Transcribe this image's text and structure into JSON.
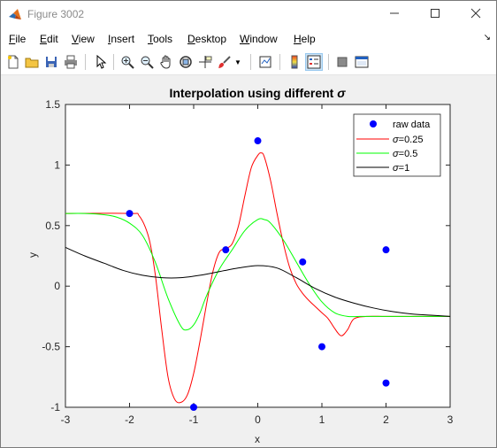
{
  "window": {
    "title": "Figure 3002",
    "minimize_icon": "minimize-icon",
    "maximize_icon": "maximize-icon",
    "close_icon": "close-icon"
  },
  "menu": [
    {
      "label": "File",
      "key": "F",
      "rest": "ile"
    },
    {
      "label": "Edit",
      "key": "E",
      "rest": "dit"
    },
    {
      "label": "View",
      "key": "V",
      "rest": "iew"
    },
    {
      "label": "Insert",
      "key": "I",
      "rest": "nsert"
    },
    {
      "label": "Tools",
      "key": "T",
      "rest": "ools"
    },
    {
      "label": "Desktop",
      "key": "D",
      "rest": "esktop"
    },
    {
      "label": "Window",
      "key": "W",
      "rest": "indow"
    },
    {
      "label": "Help",
      "key": "H",
      "rest": "elp"
    }
  ],
  "toolbar": {
    "icons": [
      "new-figure-icon",
      "open-file-icon",
      "save-icon",
      "print-icon",
      "pointer-icon",
      "zoom-in-icon",
      "zoom-out-icon",
      "pan-icon",
      "rotate-3d-icon",
      "data-cursor-icon",
      "brush-icon",
      "link-plot-icon",
      "colorbar-icon",
      "legend-icon",
      "hide-plot-tools-icon",
      "show-plot-tools-icon"
    ]
  },
  "chart_data": {
    "type": "line",
    "title_prefix": "Interpolation using different ",
    "title_symbol": "σ",
    "xlabel": "x",
    "ylabel": "y",
    "xlim": [
      -3,
      3
    ],
    "ylim": [
      -1,
      1.5
    ],
    "xticks": [
      -3,
      -2,
      -1,
      0,
      1,
      2,
      3
    ],
    "xtick_labels": [
      "-3",
      "-2",
      "-1",
      "0",
      "1",
      "2",
      "3"
    ],
    "yticks": [
      -1,
      -0.5,
      0,
      0.5,
      1,
      1.5
    ],
    "ytick_labels": [
      "-1",
      "-0.5",
      "0",
      "0.5",
      "1",
      "1.5"
    ],
    "grid": false,
    "legend_position": "top-right",
    "scatter": {
      "name": "raw data",
      "color": "#0000ff",
      "x": [
        -2,
        -1,
        -0.5,
        0,
        0.7,
        1,
        2,
        2
      ],
      "y": [
        0.6,
        -1,
        0.3,
        1.2,
        0.2,
        -0.5,
        0.3,
        -0.8
      ]
    },
    "series": [
      {
        "name": "σ=0.25",
        "symbol": "σ",
        "suffix": "=0.25",
        "color": "#ff0000",
        "x": [
          -3,
          -2,
          -1.85,
          -1.7,
          -1.6,
          -1.5,
          -1.4,
          -1.3,
          -1.2,
          -1.1,
          -1.0,
          -0.9,
          -0.8,
          -0.7,
          -0.6,
          -0.5,
          -0.4,
          -0.3,
          -0.2,
          -0.1,
          0,
          0.05,
          0.1,
          0.2,
          0.3,
          0.4,
          0.5,
          0.6,
          0.7,
          0.8,
          0.9,
          1.0,
          1.1,
          1.2,
          1.3,
          1.4,
          1.5,
          1.7,
          2,
          2.5,
          3
        ],
        "y": [
          0.6,
          0.6,
          0.58,
          0.4,
          0.1,
          -0.35,
          -0.75,
          -0.93,
          -0.96,
          -0.9,
          -0.72,
          -0.45,
          -0.15,
          0.12,
          0.28,
          0.31,
          0.35,
          0.5,
          0.75,
          0.98,
          1.08,
          1.1,
          1.07,
          0.87,
          0.6,
          0.35,
          0.15,
          0.02,
          -0.06,
          -0.12,
          -0.17,
          -0.22,
          -0.27,
          -0.35,
          -0.41,
          -0.36,
          -0.27,
          -0.25,
          -0.25,
          -0.25,
          -0.25
        ]
      },
      {
        "name": "σ=0.5",
        "symbol": "σ",
        "suffix": "=0.5",
        "color": "#00ff00",
        "x": [
          -3,
          -2.7,
          -2.4,
          -2.2,
          -2,
          -1.8,
          -1.6,
          -1.4,
          -1.2,
          -1.1,
          -1.0,
          -0.9,
          -0.8,
          -0.6,
          -0.4,
          -0.2,
          0,
          0.1,
          0.2,
          0.4,
          0.6,
          0.8,
          1.0,
          1.2,
          1.4,
          1.6,
          2,
          2.5,
          3
        ],
        "y": [
          0.6,
          0.6,
          0.59,
          0.57,
          0.52,
          0.42,
          0.2,
          -0.1,
          -0.33,
          -0.36,
          -0.32,
          -0.22,
          -0.08,
          0.14,
          0.3,
          0.46,
          0.55,
          0.55,
          0.52,
          0.38,
          0.2,
          0.02,
          -0.13,
          -0.22,
          -0.25,
          -0.25,
          -0.25,
          -0.25,
          -0.25
        ]
      },
      {
        "name": "σ=1",
        "symbol": "σ",
        "suffix": "=1",
        "color": "#000000",
        "x": [
          -3,
          -2.7,
          -2.4,
          -2.1,
          -1.8,
          -1.5,
          -1.2,
          -0.9,
          -0.6,
          -0.3,
          0,
          0.3,
          0.6,
          0.9,
          1.2,
          1.5,
          1.8,
          2.1,
          2.4,
          2.7,
          3
        ],
        "y": [
          0.32,
          0.25,
          0.19,
          0.13,
          0.09,
          0.07,
          0.07,
          0.09,
          0.12,
          0.15,
          0.17,
          0.15,
          0.07,
          -0.02,
          -0.09,
          -0.14,
          -0.18,
          -0.21,
          -0.23,
          -0.24,
          -0.25
        ]
      }
    ]
  }
}
